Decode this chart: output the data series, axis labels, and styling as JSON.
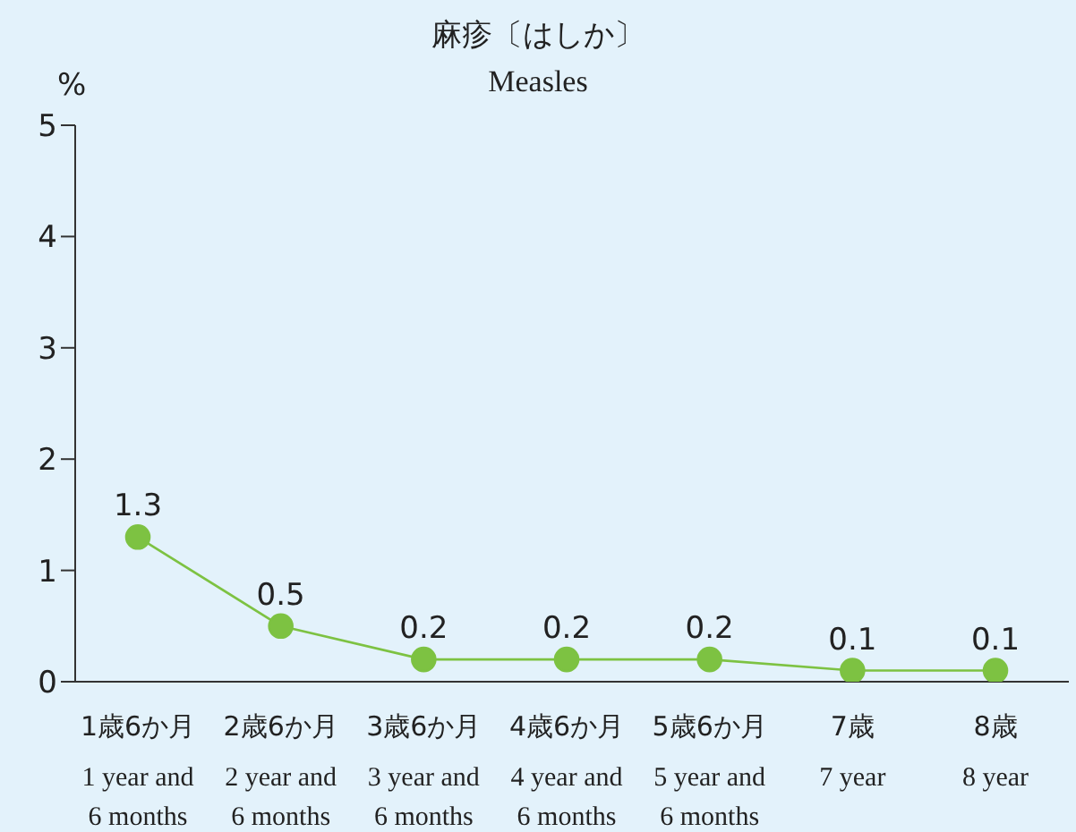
{
  "chart_data": {
    "type": "line",
    "title": "麻疹〔はしか〕",
    "subtitle": "Measles",
    "ylabel": "%",
    "categories": [
      "1歳6か月\n1 year and\n6 months",
      "2歳6か月\n2 year and\n6 months",
      "3歳6か月\n3 year and\n6 months",
      "4歳6か月\n4 year and\n6 months",
      "5歳6か月\n5 year and\n6 months",
      "7歳\n7 year",
      "8歳\n8 year"
    ],
    "series": [
      {
        "color": "#7dc242",
        "values": [
          1.3,
          0.5,
          0.2,
          0.2,
          0.2,
          0.1,
          0.1
        ]
      }
    ],
    "ylim": [
      0,
      5
    ],
    "yticks": [
      0,
      1,
      2,
      3,
      4,
      5
    ],
    "grid": false,
    "marker": "circle",
    "line_style": "solid",
    "data_labels": true
  }
}
